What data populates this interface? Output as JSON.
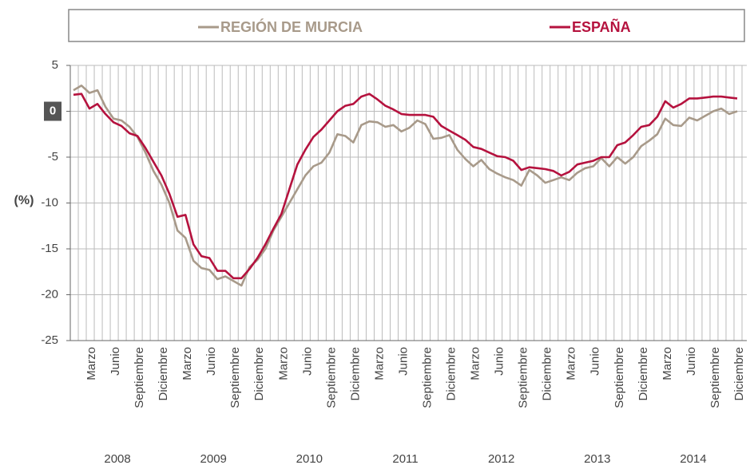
{
  "chart_data": {
    "type": "line",
    "y_label": "(%)",
    "categories": [
      null,
      null,
      "Marzo",
      null,
      null,
      "Junio",
      null,
      null,
      "Septiembre",
      null,
      null,
      "Diciembre",
      null,
      null,
      "Marzo",
      null,
      null,
      "Junio",
      null,
      null,
      "Septiembre",
      null,
      null,
      "Diciembre",
      null,
      null,
      "Marzo",
      null,
      null,
      "Junio",
      null,
      null,
      "Septiembre",
      null,
      null,
      "Diciembre",
      null,
      null,
      "Marzo",
      null,
      null,
      "Junio",
      null,
      null,
      "Septiembre",
      null,
      null,
      "Diciembre",
      null,
      null,
      "Marzo",
      null,
      null,
      "Junio",
      null,
      null,
      "Septiembre",
      null,
      null,
      "Diciembre",
      null,
      null,
      "Marzo",
      null,
      null,
      "Junio",
      null,
      null,
      "Septiembre",
      null,
      null,
      "Diciembre",
      null,
      null,
      "Marzo",
      null,
      null,
      "Junio",
      null,
      null,
      "Septiembre",
      null,
      null,
      "Diciembre"
    ],
    "years": [
      "2008",
      "2009",
      "2010",
      "2011",
      "2012",
      "2013",
      "2014"
    ],
    "series": [
      {
        "name": "REGIÓN DE MURCIA",
        "color": "#a89a8a",
        "values": [
          2.3,
          2.8,
          2.0,
          2.3,
          0.5,
          -0.8,
          -1.0,
          -1.7,
          -2.8,
          -4.5,
          -6.5,
          -8.0,
          -10,
          -13,
          -13.8,
          -16.3,
          -17.1,
          -17.3,
          -18.3,
          -18.0,
          -18.5,
          -19.0,
          -17.0,
          -16.2,
          -15,
          -13,
          -11.5,
          -10,
          -8.5,
          -7,
          -6,
          -5.6,
          -4.5,
          -2.5,
          -2.7,
          -3.4,
          -1.5,
          -1.1,
          -1.2,
          -1.7,
          -1.5,
          -2.2,
          -1.8,
          -1.0,
          -1.4,
          -3.0,
          -2.9,
          -2.6,
          -4.2,
          -5.2,
          -6.0,
          -5.3,
          -6.3,
          -6.8,
          -7.2,
          -7.5,
          -8.1,
          -6.4,
          -7.0,
          -7.8,
          -7.5,
          -7.2,
          -7.5,
          -6.7,
          -6.2,
          -6.0,
          -5.1,
          -6.0,
          -5.0,
          -5.7,
          -5.0,
          -3.8,
          -3.2,
          -2.5,
          -0.8,
          -1.5,
          -1.6,
          -0.7,
          -1.0,
          -0.5,
          0.0,
          0.3,
          -0.3,
          0.0
        ]
      },
      {
        "name": "ESPAÑA",
        "color": "#b5123e",
        "values": [
          1.8,
          1.9,
          0.3,
          0.8,
          -0.3,
          -1.2,
          -1.6,
          -2.4,
          -2.7,
          -4.0,
          -5.5,
          -7.0,
          -9,
          -11.5,
          -11.3,
          -14.5,
          -15.8,
          -16.0,
          -17.4,
          -17.4,
          -18.2,
          -18.2,
          -17.2,
          -16.0,
          -14.5,
          -12.8,
          -11.2,
          -8.5,
          -5.8,
          -4.2,
          -2.8,
          -2.0,
          -1.0,
          0.0,
          0.6,
          0.8,
          1.6,
          1.9,
          1.3,
          0.6,
          0.2,
          -0.3,
          -0.4,
          -0.4,
          -0.4,
          -0.6,
          -1.6,
          -2.1,
          -2.6,
          -3.1,
          -3.9,
          -4.1,
          -4.5,
          -4.9,
          -5.0,
          -5.4,
          -6.4,
          -6.1,
          -6.2,
          -6.3,
          -6.5,
          -7.0,
          -6.6,
          -5.8,
          -5.6,
          -5.4,
          -5.0,
          -5.0,
          -3.7,
          -3.4,
          -2.6,
          -1.7,
          -1.5,
          -0.6,
          1.1,
          0.4,
          0.8,
          1.4,
          1.4,
          1.5,
          1.6,
          1.6,
          1.5,
          1.4
        ]
      }
    ],
    "ylim": [
      -25,
      5
    ],
    "yticks": [
      5,
      0,
      -5,
      -10,
      -15,
      -20,
      -25
    ],
    "grid": true
  }
}
